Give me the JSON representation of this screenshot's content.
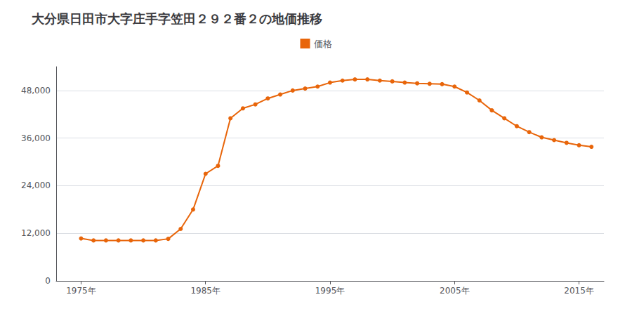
{
  "chart_data": {
    "type": "line",
    "title": "大分県日田市大字庄手字笠田２９２番２の地価推移",
    "x": [
      1975,
      1976,
      1977,
      1978,
      1979,
      1980,
      1981,
      1982,
      1983,
      1984,
      1985,
      1986,
      1987,
      1988,
      1989,
      1990,
      1991,
      1992,
      1993,
      1994,
      1995,
      1996,
      1997,
      1998,
      1999,
      2000,
      2001,
      2002,
      2003,
      2004,
      2005,
      2006,
      2007,
      2008,
      2009,
      2010,
      2011,
      2012,
      2013,
      2014,
      2015,
      2016
    ],
    "series": [
      {
        "name": "価格",
        "color": "#e8650a",
        "marker": "circle",
        "values": [
          10700,
          10200,
          10200,
          10200,
          10200,
          10200,
          10200,
          10600,
          13100,
          18000,
          27000,
          29000,
          41000,
          43500,
          44500,
          46000,
          47000,
          48000,
          48500,
          49000,
          50000,
          50500,
          50800,
          50800,
          50500,
          50300,
          50000,
          49800,
          49700,
          49600,
          49000,
          47500,
          45500,
          43000,
          41000,
          39000,
          37500,
          36200,
          35500,
          34800,
          34200,
          33800
        ]
      }
    ],
    "xlim": [
      1973,
      2017
    ],
    "xticks": [
      {
        "value": 1975,
        "label": "1975年"
      },
      {
        "value": 1985,
        "label": "1985年"
      },
      {
        "value": 1995,
        "label": "1995年"
      },
      {
        "value": 2005,
        "label": "2005年"
      },
      {
        "value": 2015,
        "label": "2015年"
      }
    ],
    "ylim": [
      0,
      54000
    ],
    "yticks": [
      0,
      {
        "value": 12000,
        "label": "12,000"
      },
      {
        "value": 24000,
        "label": "24,000"
      },
      {
        "value": 36000,
        "label": "36,000"
      },
      {
        "value": 48000,
        "label": "48,000"
      }
    ],
    "grid": true,
    "legend": "top"
  }
}
